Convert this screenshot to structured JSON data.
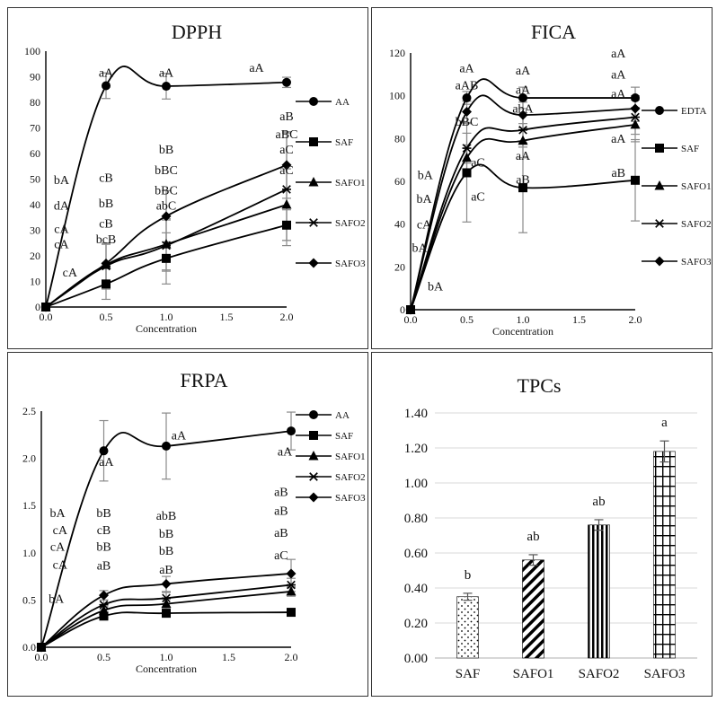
{
  "chart_data": [
    {
      "id": "dpph",
      "type": "line",
      "title": "DPPH",
      "xlabel": "Concentration",
      "ylabel": "",
      "x": [
        0.0,
        0.5,
        1.0,
        2.0
      ],
      "xticks": [
        "0.0",
        "0.5",
        "1.0",
        "1.5",
        "2.0"
      ],
      "xlim": [
        0,
        2
      ],
      "ylim": [
        0,
        100
      ],
      "yticks": [
        "0",
        "10",
        "20",
        "30",
        "40",
        "50",
        "60",
        "70",
        "80",
        "90",
        "100"
      ],
      "series": [
        {
          "name": "AA",
          "marker": "circle",
          "values": [
            0,
            86.5,
            86.3,
            87.8
          ],
          "errors": [
            0,
            5,
            5,
            2
          ]
        },
        {
          "name": "SAF",
          "marker": "square",
          "values": [
            0,
            9,
            19,
            32
          ],
          "errors": [
            0,
            6,
            10,
            6
          ]
        },
        {
          "name": "SAFO1",
          "marker": "triangle",
          "values": [
            0,
            16.5,
            24.5,
            40
          ],
          "errors": [
            0,
            8,
            10,
            14
          ]
        },
        {
          "name": "SAFO2",
          "marker": "asterisk",
          "values": [
            0,
            16,
            24,
            46
          ],
          "errors": [
            0,
            9,
            10,
            22
          ]
        },
        {
          "name": "SAFO3",
          "marker": "diamond",
          "values": [
            0,
            17,
            35.5,
            55.5
          ],
          "errors": [
            0,
            8,
            10,
            13
          ]
        }
      ],
      "annotations": [
        {
          "text": "aA",
          "x": 0.5,
          "y": 90
        },
        {
          "text": "aA",
          "x": 1.0,
          "y": 90
        },
        {
          "text": "aA",
          "x": 1.75,
          "y": 92
        },
        {
          "text": "aB",
          "x": 2.0,
          "y": 73
        },
        {
          "text": "aBC",
          "x": 2.0,
          "y": 66
        },
        {
          "text": "aC",
          "x": 2.0,
          "y": 60
        },
        {
          "text": "aC",
          "x": 2.0,
          "y": 52
        },
        {
          "text": "bA",
          "x": 0.13,
          "y": 48
        },
        {
          "text": "dA",
          "x": 0.13,
          "y": 38
        },
        {
          "text": "cA",
          "x": 0.13,
          "y": 29
        },
        {
          "text": "cA",
          "x": 0.13,
          "y": 23
        },
        {
          "text": "cA",
          "x": 0.2,
          "y": 12
        },
        {
          "text": "cB",
          "x": 0.5,
          "y": 49
        },
        {
          "text": "bB",
          "x": 0.5,
          "y": 39
        },
        {
          "text": "cB",
          "x": 0.5,
          "y": 31
        },
        {
          "text": "bcB",
          "x": 0.5,
          "y": 25
        },
        {
          "text": "bB",
          "x": 1.0,
          "y": 60
        },
        {
          "text": "bBC",
          "x": 1.0,
          "y": 52
        },
        {
          "text": "bBC",
          "x": 1.0,
          "y": 44
        },
        {
          "text": "abC",
          "x": 1.0,
          "y": 38
        }
      ]
    },
    {
      "id": "fica",
      "type": "line",
      "title": "FICA",
      "xlabel": "Concentration",
      "ylabel": "",
      "x": [
        0.0,
        0.5,
        1.0,
        2.0
      ],
      "xticks": [
        "0.0",
        "0.5",
        "1.0",
        "1.5",
        "2.0"
      ],
      "xlim": [
        0,
        2
      ],
      "ylim": [
        0,
        120
      ],
      "yticks": [
        "0",
        "20",
        "40",
        "60",
        "80",
        "100",
        "120"
      ],
      "series": [
        {
          "name": "EDTA",
          "marker": "circle",
          "values": [
            0,
            99,
            99,
            99
          ],
          "errors": [
            0,
            3,
            5,
            5
          ]
        },
        {
          "name": "SAF",
          "marker": "square",
          "values": [
            0,
            64,
            57,
            60.5
          ],
          "errors": [
            0,
            23,
            21,
            19
          ]
        },
        {
          "name": "SAFO1",
          "marker": "triangle",
          "values": [
            0,
            71,
            79,
            86.5
          ],
          "errors": [
            0,
            6,
            8,
            8
          ]
        },
        {
          "name": "SAFO2",
          "marker": "asterisk",
          "values": [
            0,
            75.5,
            84,
            90
          ],
          "errors": [
            0,
            7,
            8,
            8
          ]
        },
        {
          "name": "SAFO3",
          "marker": "diamond",
          "values": [
            0,
            92.5,
            91,
            94
          ],
          "errors": [
            0,
            5,
            6,
            6
          ]
        }
      ],
      "annotations": [
        {
          "text": "aA",
          "x": 0.5,
          "y": 111
        },
        {
          "text": "aAB",
          "x": 0.5,
          "y": 103
        },
        {
          "text": "bBC",
          "x": 0.5,
          "y": 86
        },
        {
          "text": "aC",
          "x": 0.6,
          "y": 67
        },
        {
          "text": "aC",
          "x": 0.6,
          "y": 51
        },
        {
          "text": "aA",
          "x": 1.0,
          "y": 110
        },
        {
          "text": "aA",
          "x": 1.0,
          "y": 101
        },
        {
          "text": "abA",
          "x": 1.0,
          "y": 92
        },
        {
          "text": "aA",
          "x": 1.0,
          "y": 70
        },
        {
          "text": "aB",
          "x": 1.0,
          "y": 59
        },
        {
          "text": "aA",
          "x": 1.85,
          "y": 118
        },
        {
          "text": "aA",
          "x": 1.85,
          "y": 108
        },
        {
          "text": "aA",
          "x": 1.85,
          "y": 99
        },
        {
          "text": "aA",
          "x": 1.85,
          "y": 78
        },
        {
          "text": "aB",
          "x": 1.85,
          "y": 62
        },
        {
          "text": "bA",
          "x": 0.13,
          "y": 61
        },
        {
          "text": "bA",
          "x": 0.12,
          "y": 50
        },
        {
          "text": "cA",
          "x": 0.12,
          "y": 38
        },
        {
          "text": "bA",
          "x": 0.08,
          "y": 27
        },
        {
          "text": "bA",
          "x": 0.22,
          "y": 9
        }
      ]
    },
    {
      "id": "frpa",
      "type": "line",
      "title": "FRPA",
      "xlabel": "Concentration",
      "ylabel": "",
      "x": [
        0.0,
        0.5,
        1.0,
        2.0
      ],
      "xticks": [
        "0.0",
        "0.5",
        "1.0",
        "1.5",
        "2.0"
      ],
      "xlim": [
        0,
        2
      ],
      "ylim": [
        0,
        2.5
      ],
      "yticks": [
        "0.0",
        "0.5",
        "1.0",
        "1.5",
        "2.0",
        "2.5"
      ],
      "series": [
        {
          "name": "AA",
          "marker": "circle",
          "values": [
            0,
            2.08,
            2.13,
            2.29
          ],
          "errors": [
            0,
            0.32,
            0.35,
            0.2
          ]
        },
        {
          "name": "SAF",
          "marker": "square",
          "values": [
            0,
            0.33,
            0.36,
            0.37
          ],
          "errors": [
            0,
            0.03,
            0.03,
            0.03
          ]
        },
        {
          "name": "SAFO1",
          "marker": "triangle",
          "values": [
            0,
            0.39,
            0.46,
            0.59
          ],
          "errors": [
            0,
            0.04,
            0.05,
            0.05
          ]
        },
        {
          "name": "SAFO2",
          "marker": "asterisk",
          "values": [
            0,
            0.45,
            0.52,
            0.66
          ],
          "errors": [
            0,
            0.05,
            0.06,
            0.07
          ]
        },
        {
          "name": "SAFO3",
          "marker": "diamond",
          "values": [
            0,
            0.55,
            0.67,
            0.78
          ],
          "errors": [
            0,
            0.05,
            0.08,
            0.15
          ]
        }
      ],
      "annotations": [
        {
          "text": "aA",
          "x": 0.52,
          "y": 1.92
        },
        {
          "text": "aA",
          "x": 1.1,
          "y": 2.2
        },
        {
          "text": "aA",
          "x": 1.95,
          "y": 2.03
        },
        {
          "text": "bA",
          "x": 0.13,
          "y": 1.38
        },
        {
          "text": "cA",
          "x": 0.15,
          "y": 1.2
        },
        {
          "text": "cA",
          "x": 0.13,
          "y": 1.02
        },
        {
          "text": "cA",
          "x": 0.15,
          "y": 0.83
        },
        {
          "text": "bA",
          "x": 0.12,
          "y": 0.47
        },
        {
          "text": "bB",
          "x": 0.5,
          "y": 1.38
        },
        {
          "text": "cB",
          "x": 0.5,
          "y": 1.2
        },
        {
          "text": "bB",
          "x": 0.5,
          "y": 1.02
        },
        {
          "text": "aB",
          "x": 0.5,
          "y": 0.82
        },
        {
          "text": "abB",
          "x": 1.0,
          "y": 1.35
        },
        {
          "text": "bB",
          "x": 1.0,
          "y": 1.16
        },
        {
          "text": "bB",
          "x": 1.0,
          "y": 0.98
        },
        {
          "text": "aB",
          "x": 1.0,
          "y": 0.78
        },
        {
          "text": "aB",
          "x": 1.92,
          "y": 1.6
        },
        {
          "text": "aB",
          "x": 1.92,
          "y": 1.4
        },
        {
          "text": "aB",
          "x": 1.92,
          "y": 1.17
        },
        {
          "text": "aC",
          "x": 1.92,
          "y": 0.93
        }
      ]
    },
    {
      "id": "tpcs",
      "type": "bar",
      "title": "TPCs",
      "xlabel": "",
      "ylabel": "",
      "categories": [
        "SAF",
        "SAFO1",
        "SAFO2",
        "SAFO3"
      ],
      "values": [
        0.35,
        0.56,
        0.76,
        1.18
      ],
      "errors": [
        0.02,
        0.03,
        0.03,
        0.06
      ],
      "patterns": [
        "dots",
        "diagonal",
        "vertical",
        "grid"
      ],
      "letters": [
        "b",
        "ab",
        "ab",
        "a"
      ],
      "ylim": [
        0,
        1.4
      ],
      "yticks": [
        "0.00",
        "0.20",
        "0.40",
        "0.60",
        "0.80",
        "1.00",
        "1.20",
        "1.40"
      ]
    }
  ]
}
